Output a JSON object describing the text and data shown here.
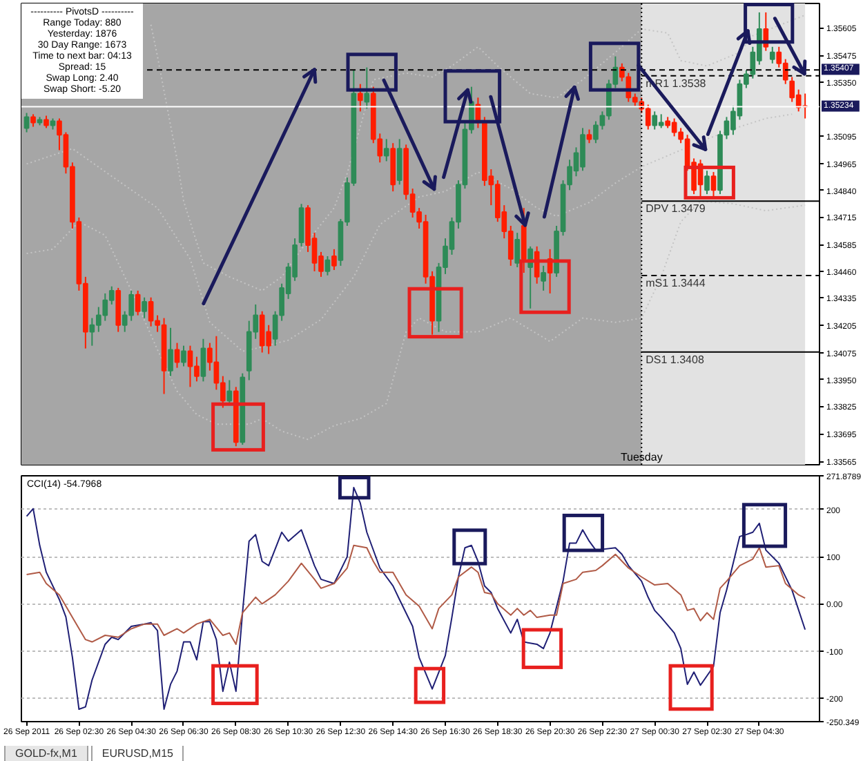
{
  "chart_data": [
    {
      "type": "candlestick",
      "x": [
        "2011-09-26T00:30",
        "2011-09-26T00:45",
        "2011-09-26T01:00",
        "2011-09-26T01:15",
        "2011-09-26T01:30",
        "2011-09-26T01:45",
        "2011-09-26T02:00",
        "2011-09-26T02:15",
        "2011-09-26T02:30",
        "2011-09-26T02:45",
        "2011-09-26T03:00",
        "2011-09-26T03:15",
        "2011-09-26T03:30",
        "2011-09-26T03:45",
        "2011-09-26T04:00",
        "2011-09-26T04:15",
        "2011-09-26T04:30",
        "2011-09-26T04:45",
        "2011-09-26T05:00",
        "2011-09-26T05:15",
        "2011-09-26T05:30",
        "2011-09-26T05:45",
        "2011-09-26T06:00",
        "2011-09-26T06:15",
        "2011-09-26T06:30",
        "2011-09-26T06:45",
        "2011-09-26T07:00",
        "2011-09-26T07:15",
        "2011-09-26T07:30",
        "2011-09-26T07:45",
        "2011-09-26T08:00",
        "2011-09-26T08:15",
        "2011-09-26T08:30",
        "2011-09-26T08:45",
        "2011-09-26T09:00",
        "2011-09-26T09:15",
        "2011-09-26T09:30",
        "2011-09-26T09:45",
        "2011-09-26T10:00",
        "2011-09-26T10:15",
        "2011-09-26T10:30",
        "2011-09-26T10:45",
        "2011-09-26T11:00",
        "2011-09-26T11:15",
        "2011-09-26T11:30",
        "2011-09-26T11:45",
        "2011-09-26T12:00",
        "2011-09-26T12:15",
        "2011-09-26T12:30",
        "2011-09-26T12:45",
        "2011-09-26T13:00",
        "2011-09-26T13:15",
        "2011-09-26T13:30",
        "2011-09-26T13:45",
        "2011-09-26T14:00",
        "2011-09-26T14:15",
        "2011-09-26T14:30",
        "2011-09-26T14:45",
        "2011-09-26T15:00",
        "2011-09-26T15:15",
        "2011-09-26T15:30",
        "2011-09-26T15:45",
        "2011-09-26T16:00",
        "2011-09-26T16:15",
        "2011-09-26T16:30",
        "2011-09-26T16:45",
        "2011-09-26T17:00",
        "2011-09-26T17:15",
        "2011-09-26T17:30",
        "2011-09-26T17:45",
        "2011-09-26T18:00",
        "2011-09-26T18:15",
        "2011-09-26T18:30",
        "2011-09-26T18:45",
        "2011-09-26T19:00",
        "2011-09-26T19:15",
        "2011-09-26T19:30",
        "2011-09-26T19:45",
        "2011-09-26T20:00",
        "2011-09-26T20:15",
        "2011-09-26T20:30",
        "2011-09-26T20:45",
        "2011-09-26T21:00",
        "2011-09-26T21:15",
        "2011-09-26T21:30",
        "2011-09-26T21:45",
        "2011-09-26T22:00",
        "2011-09-26T22:15",
        "2011-09-26T22:30",
        "2011-09-26T22:45",
        "2011-09-26T23:00",
        "2011-09-26T23:15",
        "2011-09-26T23:30",
        "2011-09-26T23:45",
        "2011-09-27T00:00",
        "2011-09-27T00:15",
        "2011-09-27T00:30",
        "2011-09-27T00:45",
        "2011-09-27T01:00",
        "2011-09-27T01:15",
        "2011-09-27T01:30",
        "2011-09-27T01:45",
        "2011-09-27T02:00",
        "2011-09-27T02:15",
        "2011-09-27T02:30",
        "2011-09-27T02:45",
        "2011-09-27T03:00",
        "2011-09-27T03:15",
        "2011-09-27T03:30",
        "2011-09-27T03:45",
        "2011-09-27T04:00",
        "2011-09-27T04:15",
        "2011-09-27T04:30",
        "2011-09-27T04:45",
        "2011-09-27T05:00",
        "2011-09-27T05:15",
        "2011-09-27T05:30",
        "2011-09-27T05:45",
        "2011-09-27T06:00",
        "2011-09-27T06:15"
      ],
      "ohlc": [
        [
          1.35134,
          1.35205,
          1.35114,
          1.35186
        ],
        [
          1.35186,
          1.35199,
          1.3514,
          1.3516
        ],
        [
          1.3516,
          1.35186,
          1.35147,
          1.35173
        ],
        [
          1.35173,
          1.35192,
          1.35134,
          1.35147
        ],
        [
          1.35147,
          1.35179,
          1.35127,
          1.35166
        ],
        [
          1.35166,
          1.35179,
          1.3503,
          1.35102
        ],
        [
          1.35102,
          1.35114,
          1.3492,
          1.34952
        ],
        [
          1.34952,
          1.34972,
          1.34661,
          1.34693
        ],
        [
          1.34693,
          1.34713,
          1.34369,
          1.34402
        ],
        [
          1.34402,
          1.34434,
          1.34097,
          1.34175
        ],
        [
          1.34175,
          1.3424,
          1.3411,
          1.34207
        ],
        [
          1.34207,
          1.34292,
          1.34175,
          1.34253
        ],
        [
          1.34253,
          1.34356,
          1.34227,
          1.34324
        ],
        [
          1.34324,
          1.34389,
          1.34304,
          1.34369
        ],
        [
          1.34369,
          1.34382,
          1.34175,
          1.34207
        ],
        [
          1.34207,
          1.34272,
          1.34175,
          1.34253
        ],
        [
          1.34253,
          1.34369,
          1.34227,
          1.3435
        ],
        [
          1.3435,
          1.34369,
          1.34253,
          1.34272
        ],
        [
          1.34272,
          1.34337,
          1.3424,
          1.34317
        ],
        [
          1.34317,
          1.34337,
          1.34201,
          1.34227
        ],
        [
          1.34227,
          1.34253,
          1.34175,
          1.34207
        ],
        [
          1.34207,
          1.3424,
          1.33883,
          1.33993
        ],
        [
          1.33993,
          1.34194,
          1.33967,
          1.34091
        ],
        [
          1.34091,
          1.34123,
          1.34006,
          1.34032
        ],
        [
          1.34032,
          1.3411,
          1.34013,
          1.34084
        ],
        [
          1.34084,
          1.3411,
          1.33916,
          1.34013
        ],
        [
          1.34013,
          1.34058,
          1.33942,
          1.33967
        ],
        [
          1.33967,
          1.34142,
          1.33942,
          1.34097
        ],
        [
          1.34097,
          1.34123,
          1.33993,
          1.34032
        ],
        [
          1.34032,
          1.34155,
          1.33903,
          1.33935
        ],
        [
          1.33935,
          1.33967,
          1.33818,
          1.33851
        ],
        [
          1.33851,
          1.33948,
          1.33831,
          1.33896
        ],
        [
          1.33896,
          1.33916,
          1.33637,
          1.33656
        ],
        [
          1.33656,
          1.3398,
          1.33644,
          1.33961
        ],
        [
          1.33993,
          1.34227,
          1.33948,
          1.34175
        ],
        [
          1.34175,
          1.34304,
          1.34142,
          1.34253
        ],
        [
          1.34253,
          1.34272,
          1.34078,
          1.3411
        ],
        [
          1.34175,
          1.34207,
          1.34071,
          1.3411
        ],
        [
          1.34142,
          1.34272,
          1.3411,
          1.34253
        ],
        [
          1.34253,
          1.34402,
          1.34227,
          1.34382
        ],
        [
          1.34356,
          1.34499,
          1.3433,
          1.34479
        ],
        [
          1.34434,
          1.34615,
          1.34415,
          1.34583
        ],
        [
          1.34596,
          1.34777,
          1.34577,
          1.34758
        ],
        [
          1.34758,
          1.34771,
          1.34551,
          1.34583
        ],
        [
          1.34615,
          1.34641,
          1.3446,
          1.34499
        ],
        [
          1.34531,
          1.34551,
          1.34434,
          1.3446
        ],
        [
          1.3446,
          1.34531,
          1.34441,
          1.34512
        ],
        [
          1.34531,
          1.34564,
          1.34466,
          1.34486
        ],
        [
          1.34512,
          1.34706,
          1.34486,
          1.34693
        ],
        [
          1.34693,
          1.34901,
          1.34674,
          1.34875
        ],
        [
          1.34875,
          1.35406,
          1.34862,
          1.35296
        ],
        [
          1.35296,
          1.35341,
          1.35212,
          1.35264
        ],
        [
          1.35257,
          1.35419,
          1.35225,
          1.35296
        ],
        [
          1.35296,
          1.35328,
          1.35063,
          1.35082
        ],
        [
          1.35082,
          1.35108,
          1.34972,
          1.35004
        ],
        [
          1.35004,
          1.35082,
          1.34978,
          1.35037
        ],
        [
          1.35037,
          1.35063,
          1.34836,
          1.34868
        ],
        [
          1.34888,
          1.35082,
          1.34868,
          1.35037
        ],
        [
          1.35037,
          1.35056,
          1.34797,
          1.34823
        ],
        [
          1.34823,
          1.34849,
          1.34713,
          1.34739
        ],
        [
          1.34739,
          1.34758,
          1.34661,
          1.34693
        ],
        [
          1.34693,
          1.34726,
          1.34402,
          1.34434
        ],
        [
          1.34434,
          1.3446,
          1.34162,
          1.34227
        ],
        [
          1.34227,
          1.34499,
          1.34175,
          1.34479
        ],
        [
          1.34479,
          1.34615,
          1.34447,
          1.34577
        ],
        [
          1.34564,
          1.34713,
          1.34538,
          1.34693
        ],
        [
          1.34693,
          1.34888,
          1.34661,
          1.34868
        ],
        [
          1.34868,
          1.3516,
          1.34849,
          1.35127
        ],
        [
          1.35127,
          1.35328,
          1.35108,
          1.35257
        ],
        [
          1.35244,
          1.35277,
          1.35134,
          1.3516
        ],
        [
          1.3516,
          1.35186,
          1.34862,
          1.34888
        ],
        [
          1.34907,
          1.3494,
          1.34771,
          1.34868
        ],
        [
          1.34868,
          1.34888,
          1.34693,
          1.34713
        ],
        [
          1.34739,
          1.34771,
          1.34615,
          1.34648
        ],
        [
          1.34648,
          1.34674,
          1.34486,
          1.34518
        ],
        [
          1.34499,
          1.34641,
          1.34479,
          1.34609
        ],
        [
          1.34674,
          1.34758,
          1.34453,
          1.34518
        ],
        [
          1.34479,
          1.34577,
          1.34285,
          1.34564
        ],
        [
          1.34551,
          1.34577,
          1.34402,
          1.34434
        ],
        [
          1.34415,
          1.34486,
          1.34369,
          1.34453
        ],
        [
          1.34518,
          1.34564,
          1.34356,
          1.34453
        ],
        [
          1.34453,
          1.34674,
          1.34434,
          1.34648
        ],
        [
          1.34648,
          1.34888,
          1.34628,
          1.34868
        ],
        [
          1.34868,
          1.34985,
          1.34842,
          1.34952
        ],
        [
          1.34933,
          1.35043,
          1.34907,
          1.35017
        ],
        [
          1.34952,
          1.35134,
          1.34933,
          1.35102
        ],
        [
          1.35102,
          1.35127,
          1.35063,
          1.35082
        ],
        [
          1.35082,
          1.35166,
          1.35063,
          1.35147
        ],
        [
          1.35147,
          1.35212,
          1.35127,
          1.35192
        ],
        [
          1.35192,
          1.35361,
          1.35173,
          1.35341
        ],
        [
          1.35341,
          1.35471,
          1.35322,
          1.35419
        ],
        [
          1.35419,
          1.35438,
          1.35354,
          1.35374
        ],
        [
          1.35374,
          1.35393,
          1.35257,
          1.35277
        ],
        [
          1.35277,
          1.35296,
          1.35238,
          1.35257
        ],
        [
          1.35257,
          1.35277,
          1.35205,
          1.35225
        ],
        [
          1.35225,
          1.35244,
          1.35127,
          1.35147
        ],
        [
          1.35147,
          1.35212,
          1.35127,
          1.35192
        ],
        [
          1.35147,
          1.35199,
          1.35134,
          1.3516
        ],
        [
          1.35166,
          1.35186,
          1.35134,
          1.35147
        ],
        [
          1.3516,
          1.35179,
          1.35095,
          1.35114
        ],
        [
          1.35114,
          1.35134,
          1.35063,
          1.35082
        ],
        [
          1.35082,
          1.35102,
          1.34933,
          1.34952
        ],
        [
          1.34972,
          1.34991,
          1.34823,
          1.34842
        ],
        [
          1.34965,
          1.34985,
          1.3481,
          1.34868
        ],
        [
          1.34842,
          1.34933,
          1.34823,
          1.34907
        ],
        [
          1.34907,
          1.34927,
          1.3481,
          1.34842
        ],
        [
          1.34842,
          1.35121,
          1.34823,
          1.35102
        ],
        [
          1.35102,
          1.35186,
          1.35082,
          1.35166
        ],
        [
          1.35127,
          1.35238,
          1.35102,
          1.35212
        ],
        [
          1.35192,
          1.35361,
          1.35173,
          1.35341
        ],
        [
          1.35341,
          1.35406,
          1.35322,
          1.35387
        ],
        [
          1.35387,
          1.35516,
          1.35367,
          1.3549
        ],
        [
          1.35451,
          1.35678,
          1.35432,
          1.356
        ],
        [
          1.356,
          1.35678,
          1.35497,
          1.35516
        ],
        [
          1.35458,
          1.35516,
          1.35438,
          1.3549
        ],
        [
          1.3549,
          1.35516,
          1.35419,
          1.35438
        ],
        [
          1.35438,
          1.35458,
          1.35341,
          1.35361
        ],
        [
          1.35354,
          1.35374,
          1.35257,
          1.35277
        ],
        [
          1.35289,
          1.35315,
          1.35212,
          1.35231
        ],
        [
          1.35238,
          1.35296,
          1.35179,
          1.35234
        ]
      ],
      "colors": [
        "#2e8b57",
        "#ff1e00",
        "#2e8b57",
        "#ff1e00",
        "#2e8b57",
        "#ff1e00",
        "#ff1e00",
        "#ff1e00",
        "#ff1e00",
        "#ff1e00",
        "#2e8b57",
        "#2e8b57",
        "#2e8b57",
        "#2e8b57",
        "#ff1e00",
        "#2e8b57",
        "#2e8b57",
        "#ff1e00",
        "#2e8b57",
        "#ff1e00",
        "#ff1e00",
        "#ff1e00",
        "#2e8b57",
        "#ff1e00",
        "#2e8b57",
        "#ff1e00",
        "#ff1e00",
        "#2e8b57",
        "#ff1e00",
        "#ff1e00",
        "#ff1e00",
        "#2e8b57",
        "#ff1e00",
        "#2e8b57",
        "#2e8b57",
        "#2e8b57",
        "#ff1e00",
        "#ff1e00",
        "#2e8b57",
        "#2e8b57",
        "#2e8b57",
        "#2e8b57",
        "#2e8b57",
        "#ff1e00",
        "#ff1e00",
        "#ff1e00",
        "#2e8b57",
        "#ff1e00",
        "#2e8b57",
        "#2e8b57",
        "#2e8b57",
        "#ff1e00",
        "#2e8b57",
        "#ff1e00",
        "#ff1e00",
        "#2e8b57",
        "#ff1e00",
        "#2e8b57",
        "#ff1e00",
        "#ff1e00",
        "#ff1e00",
        "#ff1e00",
        "#ff1e00",
        "#2e8b57",
        "#2e8b57",
        "#2e8b57",
        "#2e8b57",
        "#2e8b57",
        "#2e8b57",
        "#ff1e00",
        "#ff1e00",
        "#ff1e00",
        "#ff1e00",
        "#ff1e00",
        "#ff1e00",
        "#2e8b57",
        "#ff1e00",
        "#2e8b57",
        "#ff1e00",
        "#2e8b57",
        "#ff1e00",
        "#2e8b57",
        "#2e8b57",
        "#2e8b57",
        "#2e8b57",
        "#2e8b57",
        "#ff1e00",
        "#2e8b57",
        "#2e8b57",
        "#2e8b57",
        "#2e8b57",
        "#ff1e00",
        "#ff1e00",
        "#ff1e00",
        "#ff1e00",
        "#ff1e00",
        "#2e8b57",
        "#2e8b57",
        "#ff1e00",
        "#ff1e00",
        "#ff1e00",
        "#ff1e00",
        "#ff1e00",
        "#ff1e00",
        "#2e8b57",
        "#ff1e00",
        "#2e8b57",
        "#2e8b57",
        "#2e8b57",
        "#2e8b57",
        "#2e8b57",
        "#2e8b57",
        "#2e8b57",
        "#ff1e00",
        "#2e8b57",
        "#ff1e00",
        "#ff1e00",
        "#ff1e00",
        "#ff1e00",
        "#ff1e00"
      ],
      "xlim": [
        "2011-09-26T00:18",
        "2011-09-27T06:48"
      ],
      "ylim": [
        1.3355,
        1.3572
      ],
      "yticks": [
        1.35605,
        1.35475,
        {
          "value": 1.3535,
          "label": "1.35350"
        },
        1.35095,
        1.34965,
        {
          "value": 1.3484,
          "label": "1.34840"
        },
        1.34715,
        1.34585,
        {
          "value": 1.3446,
          "label": "1.34460"
        },
        1.34335,
        1.34205,
        1.34075,
        {
          "value": 1.3395,
          "label": "1.33950"
        },
        1.33825,
        1.33695,
        1.33565
      ],
      "tick_labels": "y",
      "series": [
        {
          "type": "line",
          "x": [
            "2011-09-26T05:15",
            "2011-09-26T05:30",
            "2011-09-26T05:45",
            "2011-09-26T06:00",
            "2011-09-26T06:15",
            "2011-09-26T06:30",
            "2011-09-26T07:15",
            "2011-09-26T08:15",
            "2011-09-26T09:30",
            "2011-09-26T10:15",
            "2011-09-26T11:00",
            "2011-09-26T12:15",
            "2011-09-26T12:45",
            "2011-09-26T13:45",
            "2011-09-26T15:00",
            "2011-09-26T16:00",
            "2011-09-26T16:45",
            "2011-09-26T17:45",
            "2011-09-26T18:30",
            "2011-09-26T19:45",
            "2011-09-26T20:45",
            "2011-09-26T21:45",
            "2011-09-26T23:00",
            "2011-09-27T00:00",
            "2011-09-27T01:00",
            "2011-09-27T01:30",
            "2011-09-27T02:30",
            "2011-09-27T03:45",
            "2011-09-27T04:15",
            "2011-09-27T06:15"
          ],
          "values": [
            1.3562,
            1.35471,
            1.35309,
            1.35147,
            1.34985,
            1.3479,
            1.34499,
            1.34434,
            1.34369,
            1.34434,
            1.34564,
            1.34758,
            1.3492,
            1.35361,
            1.35393,
            1.35374,
            1.35426,
            1.35516,
            1.35426,
            1.35296,
            1.35276,
            1.35361,
            1.3549,
            1.356,
            1.35581,
            1.35451,
            1.35426,
            1.3549,
            1.35568,
            1.35665
          ],
          "color": "#c4c4c4",
          "line_style": "dotted"
        },
        {
          "type": "line",
          "x": [
            "2011-09-26T00:30",
            "2011-09-26T02:15",
            "2011-09-26T03:45",
            "2011-09-26T05:30",
            "2011-09-26T06:45",
            "2011-09-26T07:30",
            "2011-09-26T08:45",
            "2011-09-26T09:15",
            "2011-09-26T10:30",
            "2011-09-26T11:45",
            "2011-09-26T13:00",
            "2011-09-26T14:00",
            "2011-09-26T15:30",
            "2011-09-26T16:30",
            "2011-09-26T17:45",
            "2011-09-26T19:00",
            "2011-09-26T20:00",
            "2011-09-26T20:45",
            "2011-09-26T22:00",
            "2011-09-26T23:00",
            "2011-09-27T00:00",
            "2011-09-27T01:15",
            "2011-09-27T02:30",
            "2011-09-27T03:45",
            "2011-09-27T04:45",
            "2011-09-27T05:45"
          ],
          "values": [
            1.34965,
            1.35037,
            1.34907,
            1.34758,
            1.34518,
            1.3422,
            1.34084,
            1.34097,
            1.34136,
            1.34233,
            1.34434,
            1.3468,
            1.3481,
            1.34836,
            1.34927,
            1.34849,
            1.34758,
            1.34719,
            1.34784,
            1.34875,
            1.34952,
            1.35017,
            1.35082,
            1.3514,
            1.35179,
            1.35199
          ],
          "color": "#c4c4c4",
          "line_style": "dotted"
        },
        {
          "type": "line",
          "x": [
            "2011-09-26T00:30",
            "2011-09-26T01:30",
            "2011-09-26T02:30",
            "2011-09-26T03:30",
            "2011-09-26T04:30",
            "2011-09-26T05:30",
            "2011-09-26T06:15",
            "2011-09-26T07:00",
            "2011-09-26T07:45",
            "2011-09-26T09:00",
            "2011-09-26T09:30",
            "2011-09-26T10:15",
            "2011-09-26T11:15",
            "2011-09-26T12:15",
            "2011-09-26T13:15",
            "2011-09-26T14:15",
            "2011-09-26T15:00",
            "2011-09-26T15:30",
            "2011-09-26T16:30",
            "2011-09-26T17:45",
            "2011-09-26T19:00",
            "2011-09-26T20:30",
            "2011-09-26T21:45",
            "2011-09-26T23:00",
            "2011-09-27T00:00",
            "2011-09-27T00:45",
            "2011-09-27T01:30",
            "2011-09-27T02:15",
            "2011-09-27T03:30",
            "2011-09-27T04:45",
            "2011-09-27T06:15"
          ],
          "values": [
            1.34544,
            1.34564,
            1.34693,
            1.34629,
            1.34369,
            1.34091,
            1.33896,
            1.33786,
            1.33741,
            1.33741,
            1.33767,
            1.33708,
            1.33669,
            1.33734,
            1.33767,
            1.33838,
            1.34175,
            1.3424,
            1.34175,
            1.34175,
            1.3424,
            1.3413,
            1.3424,
            1.3422,
            1.3424,
            1.34434,
            1.34693,
            1.3479,
            1.34778,
            1.34745,
            1.34771
          ],
          "color": "#c4c4c4",
          "line_style": "dotted"
        },
        {
          "type": "line",
          "x": [
            "2011-09-27T00:00",
            "2011-09-27T06:48"
          ],
          "values": [
            1.3538,
            1.3538
          ],
          "color": "#000000",
          "line_style": "dashed"
        },
        {
          "type": "line",
          "x": [
            "2011-09-27T00:00",
            "2011-09-27T06:48"
          ],
          "values": [
            1.3479,
            1.3479
          ],
          "color": "#000000",
          "line_style": "solid"
        },
        {
          "type": "line",
          "x": [
            "2011-09-27T00:00",
            "2011-09-27T06:48"
          ],
          "values": [
            1.3444,
            1.3444
          ],
          "color": "#000000",
          "line_style": "dashed"
        },
        {
          "type": "line",
          "x": [
            "2011-09-27T00:00",
            "2011-09-27T06:48"
          ],
          "values": [
            1.3408,
            1.3408
          ],
          "color": "#000000",
          "line_style": "solid"
        }
      ],
      "ref_lines": [
        {
          "axis": "y",
          "value": 1.35407,
          "label": "1.35407",
          "color": "#000000",
          "line_style": "dashed"
        },
        {
          "axis": "y",
          "value": 1.35234,
          "label": "1.35234",
          "color": "#ffffff",
          "line_style": "solid"
        },
        {
          "axis": "x",
          "value": "2011-09-27T00:00",
          "label": "Tuesday",
          "color": "#000000",
          "line_style": "dotted"
        }
      ],
      "bands": [
        {
          "axis": "x",
          "from": "2011-09-26T00:18",
          "to": "2011-09-27T00:00",
          "color": "#a6a6a6"
        },
        {
          "axis": "x",
          "from": "2011-09-27T00:00",
          "to": "2011-09-27T06:15",
          "color": "#e2e2e2"
        }
      ],
      "annotations": [
        "---------- PivotsD ----------",
        "Range Today: 880",
        "Yesterday: 1876",
        "30 Day Range: 1673",
        "Time to next bar: 04:13",
        "Spread: 15",
        "Swap Long: 2.40",
        "Swap Short: -5.20",
        {
          "text": "mR1 1.3538",
          "x": "2011-09-27T00:00",
          "y": 1.3538
        },
        {
          "text": "DPV 1.3479",
          "x": "2011-09-27T00:00",
          "y": 1.3479
        },
        {
          "text": "mS1 1.3444",
          "x": "2011-09-27T00:00",
          "y": 1.3444
        },
        {
          "text": "DS1 1.3408",
          "x": "2011-09-27T00:00",
          "y": 1.3408
        }
      ]
    },
    {
      "type": "line",
      "title": "CCI(14) -54.7968",
      "xlim": [
        "2011-09-26T00:18",
        "2011-09-27T06:48"
      ],
      "xticks": [
        {
          "value": "2011-09-26T00:30",
          "label": "26 Sep 2011"
        },
        {
          "value": "2011-09-26T02:30",
          "label": "26 Sep 02:30"
        },
        {
          "value": "2011-09-26T04:30",
          "label": "26 Sep 04:30"
        },
        {
          "value": "2011-09-26T06:30",
          "label": "26 Sep 06:30"
        },
        {
          "value": "2011-09-26T08:30",
          "label": "26 Sep 08:30"
        },
        {
          "value": "2011-09-26T10:30",
          "label": "26 Sep 10:30"
        },
        {
          "value": "2011-09-26T12:30",
          "label": "26 Sep 12:30"
        },
        {
          "value": "2011-09-26T14:30",
          "label": "26 Sep 14:30"
        },
        {
          "value": "2011-09-26T16:30",
          "label": "26 Sep 16:30"
        },
        {
          "value": "2011-09-26T18:30",
          "label": "26 Sep 18:30"
        },
        {
          "value": "2011-09-26T20:30",
          "label": "26 Sep 20:30"
        },
        {
          "value": "2011-09-26T22:30",
          "label": "26 Sep 22:30"
        },
        {
          "value": "2011-09-27T00:30",
          "label": "27 Sep 00:30"
        },
        {
          "value": "2011-09-27T02:30",
          "label": "27 Sep 02:30"
        },
        {
          "value": "2011-09-27T04:30",
          "label": "27 Sep 04:30"
        }
      ],
      "ylim": [
        -250.349,
        271.8789
      ],
      "yticks": [
        271.8789,
        200,
        100,
        {
          "value": 0,
          "label": "0.00"
        },
        -100,
        -200,
        -250.349
      ],
      "grid": "y",
      "series": [
        {
          "x": [
            "2011-09-26T00:30",
            "2011-09-26T00:45",
            "2011-09-26T01:00",
            "2011-09-26T01:15",
            "2011-09-26T01:45",
            "2011-09-26T02:00",
            "2011-09-26T02:15",
            "2011-09-26T02:30",
            "2011-09-26T02:45",
            "2011-09-26T03:00",
            "2011-09-26T03:30",
            "2011-09-26T03:45",
            "2011-09-26T04:00",
            "2011-09-26T04:30",
            "2011-09-26T05:00",
            "2011-09-26T05:15",
            "2011-09-26T05:30",
            "2011-09-26T05:45",
            "2011-09-26T06:00",
            "2011-09-26T06:15",
            "2011-09-26T06:30",
            "2011-09-26T06:45",
            "2011-09-26T07:00",
            "2011-09-26T07:15",
            "2011-09-26T07:30",
            "2011-09-26T07:45",
            "2011-09-26T08:00",
            "2011-09-26T08:15",
            "2011-09-26T08:30",
            "2011-09-26T08:45",
            "2011-09-26T09:00",
            "2011-09-26T09:15",
            "2011-09-26T09:30",
            "2011-09-26T09:45",
            "2011-09-26T10:15",
            "2011-09-26T10:30",
            "2011-09-26T11:00",
            "2011-09-26T11:30",
            "2011-09-26T11:45",
            "2011-09-26T12:15",
            "2011-09-26T12:45",
            "2011-09-26T13:00",
            "2011-09-26T13:15",
            "2011-09-26T13:30",
            "2011-09-26T14:00",
            "2011-09-26T14:30",
            "2011-09-26T14:45",
            "2011-09-26T15:15",
            "2011-09-26T15:30",
            "2011-09-26T16:00",
            "2011-09-26T16:30",
            "2011-09-26T16:45",
            "2011-09-26T17:00",
            "2011-09-26T17:15",
            "2011-09-26T17:30",
            "2011-09-26T17:45",
            "2011-09-26T18:00",
            "2011-09-26T18:15",
            "2011-09-26T18:30",
            "2011-09-26T19:00",
            "2011-09-26T19:15",
            "2011-09-26T19:30",
            "2011-09-26T20:00",
            "2011-09-26T20:15",
            "2011-09-26T20:30",
            "2011-09-26T21:00",
            "2011-09-26T21:15",
            "2011-09-26T21:30",
            "2011-09-26T21:45",
            "2011-09-26T22:00",
            "2011-09-26T22:15",
            "2011-09-26T23:00",
            "2011-09-26T23:15",
            "2011-09-26T23:30",
            "2011-09-27T00:00",
            "2011-09-27T00:15",
            "2011-09-27T00:30",
            "2011-09-27T00:45",
            "2011-09-27T01:15",
            "2011-09-27T01:30",
            "2011-09-27T01:45",
            "2011-09-27T02:00",
            "2011-09-27T02:15",
            "2011-09-27T02:45",
            "2011-09-27T03:00",
            "2011-09-27T03:15",
            "2011-09-27T03:30",
            "2011-09-27T03:45",
            "2011-09-27T04:00",
            "2011-09-27T04:15",
            "2011-09-27T04:30",
            "2011-09-27T04:45",
            "2011-09-27T05:15",
            "2011-09-27T05:45",
            "2011-09-27T06:15"
          ],
          "values": [
            186,
            202,
            124,
            67,
            9,
            -28,
            -114,
            -224,
            -219,
            -162,
            -86,
            -71,
            -76,
            -48,
            -43,
            -40,
            -57,
            -224,
            -171,
            -143,
            -81,
            -81,
            -119,
            -38,
            -38,
            -76,
            -186,
            -124,
            -186,
            -19,
            133,
            147,
            90,
            81,
            152,
            133,
            157,
            81,
            52,
            43,
            100,
            247,
            214,
            152,
            76,
            38,
            9,
            -48,
            -114,
            -181,
            -110,
            -29,
            57,
            119,
            124,
            90,
            38,
            24,
            -10,
            -62,
            -33,
            -81,
            -86,
            -95,
            -62,
            48,
            129,
            129,
            157,
            133,
            114,
            119,
            105,
            81,
            48,
            14,
            -14,
            -29,
            -62,
            -95,
            -171,
            -145,
            -173,
            -133,
            -19,
            29,
            86,
            143,
            147,
            152,
            171,
            114,
            86,
            29,
            -54.7968
          ],
          "color": "#1f1f75"
        },
        {
          "x": [
            "2011-09-26T00:30",
            "2011-09-26T01:00",
            "2011-09-26T01:15",
            "2011-09-26T01:45",
            "2011-09-26T02:15",
            "2011-09-26T02:45",
            "2011-09-26T03:00",
            "2011-09-26T03:30",
            "2011-09-26T04:00",
            "2011-09-26T04:30",
            "2011-09-26T05:00",
            "2011-09-26T05:30",
            "2011-09-26T05:45",
            "2011-09-26T06:15",
            "2011-09-26T06:30",
            "2011-09-26T07:00",
            "2011-09-26T07:30",
            "2011-09-26T08:00",
            "2011-09-26T08:15",
            "2011-09-26T08:30",
            "2011-09-26T08:45",
            "2011-09-26T09:15",
            "2011-09-26T09:30",
            "2011-09-26T10:00",
            "2011-09-26T10:30",
            "2011-09-26T11:00",
            "2011-09-26T11:30",
            "2011-09-26T11:45",
            "2011-09-26T12:15",
            "2011-09-26T12:45",
            "2011-09-26T13:00",
            "2011-09-26T13:30",
            "2011-09-26T13:45",
            "2011-09-26T14:00",
            "2011-09-26T14:30",
            "2011-09-26T15:00",
            "2011-09-26T15:30",
            "2011-09-26T16:00",
            "2011-09-26T16:15",
            "2011-09-26T16:45",
            "2011-09-26T17:00",
            "2011-09-26T17:30",
            "2011-09-26T17:45",
            "2011-09-26T18:00",
            "2011-09-26T18:15",
            "2011-09-26T18:30",
            "2011-09-26T19:00",
            "2011-09-26T19:15",
            "2011-09-26T19:30",
            "2011-09-26T19:45",
            "2011-09-26T20:00",
            "2011-09-26T20:30",
            "2011-09-26T20:45",
            "2011-09-26T21:00",
            "2011-09-26T21:30",
            "2011-09-26T21:45",
            "2011-09-26T22:15",
            "2011-09-26T22:30",
            "2011-09-26T23:00",
            "2011-09-26T23:30",
            "2011-09-27T00:00",
            "2011-09-27T00:30",
            "2011-09-27T01:00",
            "2011-09-27T01:30",
            "2011-09-27T01:45",
            "2011-09-27T02:00",
            "2011-09-27T02:15",
            "2011-09-27T02:30",
            "2011-09-27T02:45",
            "2011-09-27T03:00",
            "2011-09-27T03:15",
            "2011-09-27T03:45",
            "2011-09-27T04:15",
            "2011-09-27T04:30",
            "2011-09-27T04:45",
            "2011-09-27T05:15",
            "2011-09-27T05:30",
            "2011-09-27T06:00",
            "2011-09-27T06:15"
          ],
          "values": [
            62,
            67,
            43,
            19,
            -29,
            -76,
            -81,
            -67,
            -71,
            -53,
            -43,
            -43,
            -67,
            -53,
            -62,
            -43,
            -33,
            -67,
            -62,
            -86,
            -19,
            14,
            0,
            19,
            48,
            86,
            52,
            33,
            43,
            76,
            124,
            119,
            90,
            67,
            67,
            19,
            -5,
            -53,
            -10,
            19,
            57,
            78,
            67,
            24,
            21,
            0,
            -24,
            -10,
            -24,
            -14,
            -29,
            -24,
            -24,
            43,
            52,
            67,
            71,
            81,
            105,
            76,
            57,
            40,
            43,
            19,
            -14,
            -10,
            -36,
            -19,
            -33,
            33,
            48,
            81,
            95,
            119,
            78,
            81,
            43,
            19,
            12
          ],
          "color": "#b05a46"
        }
      ],
      "annotations": [
        "GOLD-fx,M1",
        "EURUSD,M15"
      ]
    }
  ]
}
